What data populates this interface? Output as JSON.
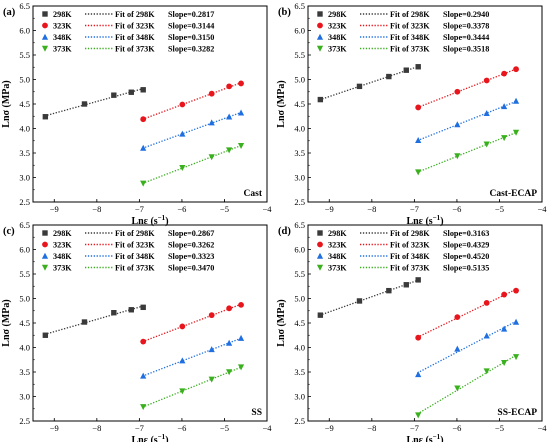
{
  "colors": {
    "298K": "#3a3a3a",
    "323K": "#e8161c",
    "348K": "#1f6fe0",
    "373K": "#3ab01e"
  },
  "chart_data": [
    {
      "type": "scatter",
      "panel_label": "(a)",
      "sample": "Cast",
      "xlabel_main": "Lnε (s",
      "xlabel_sup": "−1",
      "xlabel_tail": ")",
      "ylabel": "Lnσ (MPa)",
      "xlim": [
        -9.5,
        -4
      ],
      "ylim": [
        2.5,
        6.5
      ],
      "xticks": [
        -9,
        -8,
        -7,
        -6,
        -5,
        -4
      ],
      "yticks": [
        2.5,
        3.0,
        3.5,
        4.0,
        4.5,
        5.0,
        5.5,
        6.0,
        6.5
      ],
      "legend_position": "top-left",
      "series": [
        {
          "name": "298K",
          "fit_label": "Fit of 298K",
          "slope_label": "Slope=0.2817",
          "marker": "square",
          "x": [
            -9.21,
            -8.29,
            -7.6,
            -7.19,
            -6.91
          ],
          "y": [
            4.24,
            4.5,
            4.68,
            4.74,
            4.79
          ]
        },
        {
          "name": "323K",
          "fit_label": "Fit of 323K",
          "slope_label": "Slope=0.3144",
          "marker": "circle",
          "x": [
            -6.91,
            -5.99,
            -5.3,
            -4.89,
            -4.61
          ],
          "y": [
            4.19,
            4.49,
            4.71,
            4.86,
            4.92
          ]
        },
        {
          "name": "348K",
          "fit_label": "Fit of 348K",
          "slope_label": "Slope=0.3150",
          "marker": "triangle-up",
          "x": [
            -6.91,
            -5.99,
            -5.3,
            -4.89,
            -4.61
          ],
          "y": [
            3.6,
            3.89,
            4.12,
            4.24,
            4.32
          ]
        },
        {
          "name": "373K",
          "fit_label": "Fit of 373K",
          "slope_label": "Slope=0.3282",
          "marker": "triangle-down",
          "x": [
            -6.91,
            -5.99,
            -5.3,
            -4.89,
            -4.61
          ],
          "y": [
            2.88,
            3.2,
            3.42,
            3.56,
            3.65
          ]
        }
      ]
    },
    {
      "type": "scatter",
      "panel_label": "(b)",
      "sample": "Cast-ECAP",
      "xlabel_main": "Lnε (s",
      "xlabel_sup": "−1",
      "xlabel_tail": ")",
      "ylabel": "Lnσ (MPa)",
      "xlim": [
        -9.5,
        -4
      ],
      "ylim": [
        2.5,
        6.5
      ],
      "xticks": [
        -9,
        -8,
        -7,
        -6,
        -5,
        -4
      ],
      "yticks": [
        2.5,
        3.0,
        3.5,
        4.0,
        4.5,
        5.0,
        5.5,
        6.0,
        6.5
      ],
      "legend_position": "top-left",
      "series": [
        {
          "name": "298K",
          "fit_label": "Fit of 298K",
          "slope_label": "Slope=0.2940",
          "marker": "square",
          "x": [
            -9.21,
            -8.29,
            -7.6,
            -7.19,
            -6.91
          ],
          "y": [
            4.59,
            4.86,
            5.06,
            5.19,
            5.26
          ]
        },
        {
          "name": "323K",
          "fit_label": "Fit of 323K",
          "slope_label": "Slope=0.3378",
          "marker": "circle",
          "x": [
            -6.91,
            -5.99,
            -5.3,
            -4.89,
            -4.61
          ],
          "y": [
            4.43,
            4.75,
            4.98,
            5.12,
            5.21
          ]
        },
        {
          "name": "348K",
          "fit_label": "Fit of 348K",
          "slope_label": "Slope=0.3444",
          "marker": "triangle-up",
          "x": [
            -6.91,
            -5.99,
            -5.3,
            -4.89,
            -4.61
          ],
          "y": [
            3.76,
            4.08,
            4.31,
            4.45,
            4.56
          ]
        },
        {
          "name": "373K",
          "fit_label": "Fit of 373K",
          "slope_label": "Slope=0.3518",
          "marker": "triangle-down",
          "x": [
            -6.91,
            -5.99,
            -5.3,
            -4.89,
            -4.61
          ],
          "y": [
            3.11,
            3.44,
            3.68,
            3.81,
            3.92
          ]
        }
      ]
    },
    {
      "type": "scatter",
      "panel_label": "(c)",
      "sample": "SS",
      "xlabel_main": "Lnε (s",
      "xlabel_sup": "−1",
      "xlabel_tail": ")",
      "ylabel": "Lnσ (MPa)",
      "xlim": [
        -9.5,
        -4
      ],
      "ylim": [
        2.5,
        6.5
      ],
      "xticks": [
        -9,
        -8,
        -7,
        -6,
        -5,
        -4
      ],
      "yticks": [
        2.5,
        3.0,
        3.5,
        4.0,
        4.5,
        5.0,
        5.5,
        6.0,
        6.5
      ],
      "legend_position": "top-left",
      "series": [
        {
          "name": "298K",
          "fit_label": "Fit of 298K",
          "slope_label": "Slope=0.2867",
          "marker": "square",
          "x": [
            -9.21,
            -8.29,
            -7.6,
            -7.19,
            -6.91
          ],
          "y": [
            4.25,
            4.52,
            4.71,
            4.77,
            4.82
          ]
        },
        {
          "name": "323K",
          "fit_label": "Fit of 323K",
          "slope_label": "Slope=0.3262",
          "marker": "circle",
          "x": [
            -6.91,
            -5.99,
            -5.3,
            -4.89,
            -4.61
          ],
          "y": [
            4.12,
            4.43,
            4.66,
            4.8,
            4.87
          ]
        },
        {
          "name": "348K",
          "fit_label": "Fit of 348K",
          "slope_label": "Slope=0.3323",
          "marker": "triangle-up",
          "x": [
            -6.91,
            -5.99,
            -5.3,
            -4.89,
            -4.61
          ],
          "y": [
            3.42,
            3.73,
            3.96,
            4.09,
            4.19
          ]
        },
        {
          "name": "373K",
          "fit_label": "Fit of 373K",
          "slope_label": "Slope=0.3470",
          "marker": "triangle-down",
          "x": [
            -6.91,
            -5.99,
            -5.3,
            -4.89,
            -4.61
          ],
          "y": [
            2.79,
            3.11,
            3.35,
            3.5,
            3.6
          ]
        }
      ]
    },
    {
      "type": "scatter",
      "panel_label": "(d)",
      "sample": "SS-ECAP",
      "xlabel_main": "Lnε (s",
      "xlabel_sup": "−1",
      "xlabel_tail": ")",
      "ylabel": "Lnσ (MPa)",
      "xlim": [
        -9.5,
        -4
      ],
      "ylim": [
        2.5,
        6.5
      ],
      "xticks": [
        -9,
        -8,
        -7,
        -6,
        -5,
        -4
      ],
      "yticks": [
        2.5,
        3.0,
        3.5,
        4.0,
        4.5,
        5.0,
        5.5,
        6.0,
        6.5
      ],
      "legend_position": "top-left",
      "series": [
        {
          "name": "298K",
          "fit_label": "Fit of 298K",
          "slope_label": "Slope=0.3163",
          "marker": "square",
          "x": [
            -9.21,
            -8.29,
            -7.6,
            -7.19,
            -6.91
          ],
          "y": [
            4.66,
            4.95,
            5.16,
            5.28,
            5.38
          ]
        },
        {
          "name": "323K",
          "fit_label": "Fit of 323K",
          "slope_label": "Slope=0.4329",
          "marker": "circle",
          "x": [
            -6.91,
            -5.99,
            -5.3,
            -4.89,
            -4.61
          ],
          "y": [
            4.2,
            4.62,
            4.91,
            5.08,
            5.16
          ]
        },
        {
          "name": "348K",
          "fit_label": "Fit of 348K",
          "slope_label": "Slope=0.4520",
          "marker": "triangle-up",
          "x": [
            -6.91,
            -5.99,
            -5.3,
            -4.89,
            -4.61
          ],
          "y": [
            3.45,
            3.97,
            4.24,
            4.38,
            4.52
          ]
        },
        {
          "name": "373K",
          "fit_label": "Fit of 373K",
          "slope_label": "Slope=0.5135",
          "marker": "triangle-down",
          "x": [
            -6.91,
            -5.99,
            -5.3,
            -4.89,
            -4.61
          ],
          "y": [
            2.62,
            3.17,
            3.52,
            3.69,
            3.81
          ]
        }
      ]
    }
  ]
}
